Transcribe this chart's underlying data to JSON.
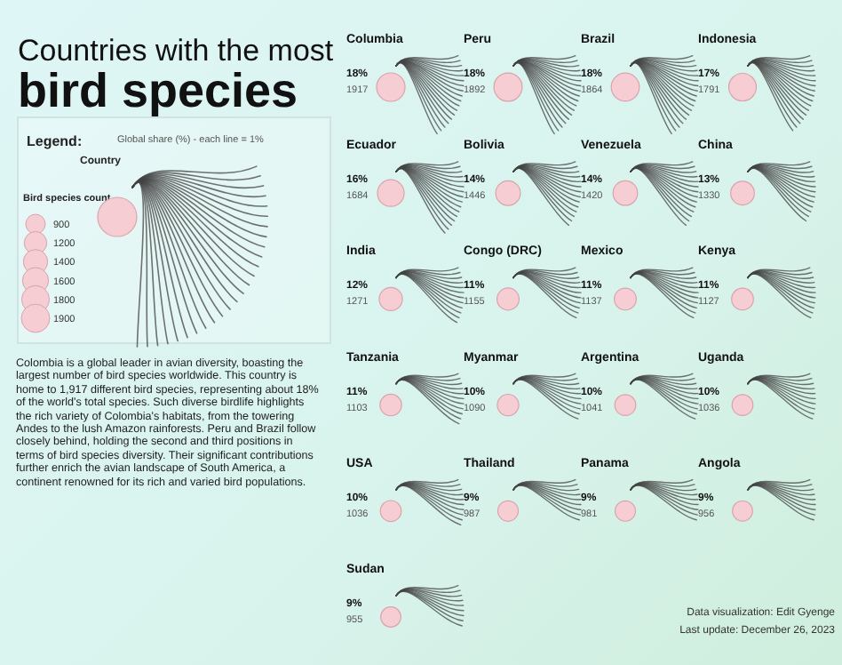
{
  "chart_data": {
    "type": "other",
    "title": "Countries with the most",
    "subtitle": "bird species",
    "legend_title": "Legend:",
    "color": "#f7cdd4",
    "categories": [
      "Columbia",
      "Peru",
      "Brazil",
      "Indonesia",
      "Ecuador",
      "Bolivia",
      "Venezuela",
      "China",
      "India",
      "Congo (DRC)",
      "Mexico",
      "Kenya",
      "Tanzania",
      "Myanmar",
      "Argentina",
      "Uganda",
      "USA",
      "Thailand",
      "Panama",
      "Angola",
      "Sudan"
    ],
    "series": [
      {
        "values": [
          18,
          18,
          18,
          17,
          16,
          14,
          14,
          13,
          12,
          11,
          11,
          11,
          11,
          10,
          10,
          10,
          10,
          9,
          9,
          9,
          9
        ],
        "value_labels": [
          "18%",
          "18%",
          "18%",
          "17%",
          "16%",
          "14%",
          "14%",
          "13%",
          "12%",
          "11%",
          "11%",
          "11%",
          "11%",
          "10%",
          "10%",
          "10%",
          "10%",
          "9%",
          "9%",
          "9%",
          "9%"
        ]
      },
      {
        "values": [
          1917,
          1892,
          1864,
          1791,
          1684,
          1446,
          1420,
          1330,
          1271,
          1155,
          1137,
          1127,
          1103,
          1090,
          1041,
          1036,
          1036,
          987,
          981,
          956,
          955
        ],
        "value_labels": [
          "1917",
          "1892",
          "1864",
          "1791",
          "1684",
          "1446",
          "1420",
          "1330",
          "1271",
          "1155",
          "1137",
          "1127",
          "1103",
          "1090",
          "1041",
          "1036",
          "1036",
          "987",
          "981",
          "956",
          "955"
        ]
      }
    ],
    "annotations": [
      "Global share (%) - each line = 1%",
      "Country",
      "Bird species count",
      "Colombia is a global leader in avian diversity, boasting the largest number of bird species worldwide. This country is home to 1,917 different bird species, representing about 18% of the world's total species. Such diverse birdlife highlights the rich variety of Colombia's habitats, from the towering Andes to the lush Amazon rainforests. Peru and Brazil follow closely behind, holding the second and third positions in terms of bird species diversity. Their significant contributions further enrich the avian landscape of South America, a continent renowned for its rich and varied bird populations.",
      "Data visualization: Edit Gyenge",
      "Last update: December 26, 2023",
      "900",
      "1200",
      "1400",
      "1600",
      "1800",
      "1900"
    ]
  }
}
